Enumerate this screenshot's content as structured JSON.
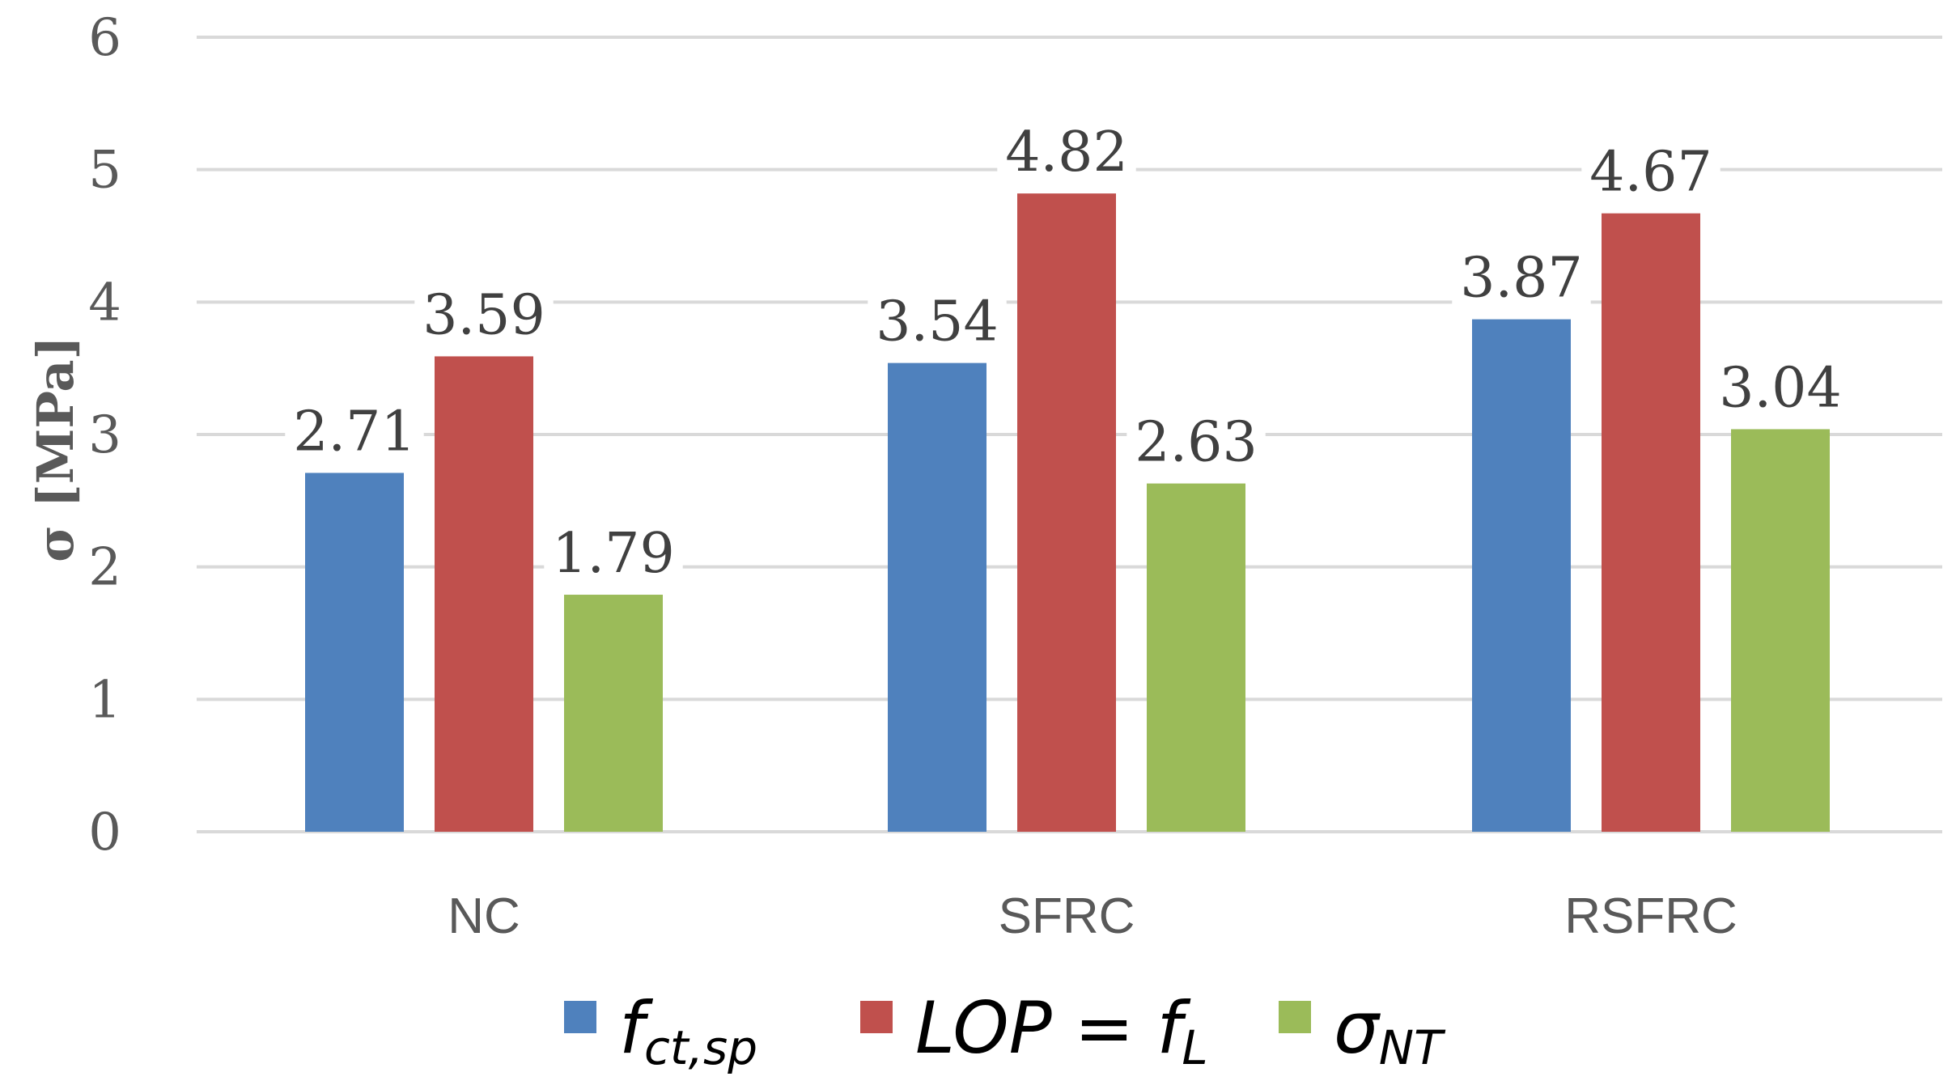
{
  "chart_data": {
    "type": "bar",
    "title": "",
    "xlabel": "",
    "ylabel": "σ [MPa]",
    "ylim": [
      0,
      6
    ],
    "yticks": [
      "0",
      "1",
      "2",
      "3",
      "4",
      "5",
      "6"
    ],
    "grid": true,
    "legend_position": "bottom",
    "categories": [
      "NC",
      "SFRC",
      "RSFRC"
    ],
    "series": [
      {
        "name": "fct,sp",
        "legend_main": "f",
        "legend_sub": "ct,sp",
        "color": "#4f81bd",
        "values": [
          2.71,
          3.54,
          3.87
        ],
        "labels": [
          "2.71",
          "3.54",
          "3.87"
        ]
      },
      {
        "name": "LOP = fL",
        "legend_main": "LOP = f",
        "legend_sub": "L",
        "color": "#c0504d",
        "values": [
          3.59,
          4.82,
          4.67
        ],
        "labels": [
          "3.59",
          "4.82",
          "4.67"
        ]
      },
      {
        "name": "σNT",
        "legend_main": "σ",
        "legend_sub": "NT",
        "color": "#9bbb59",
        "values": [
          1.79,
          2.63,
          3.04
        ],
        "labels": [
          "1.79",
          "2.63",
          "3.04"
        ]
      }
    ]
  }
}
